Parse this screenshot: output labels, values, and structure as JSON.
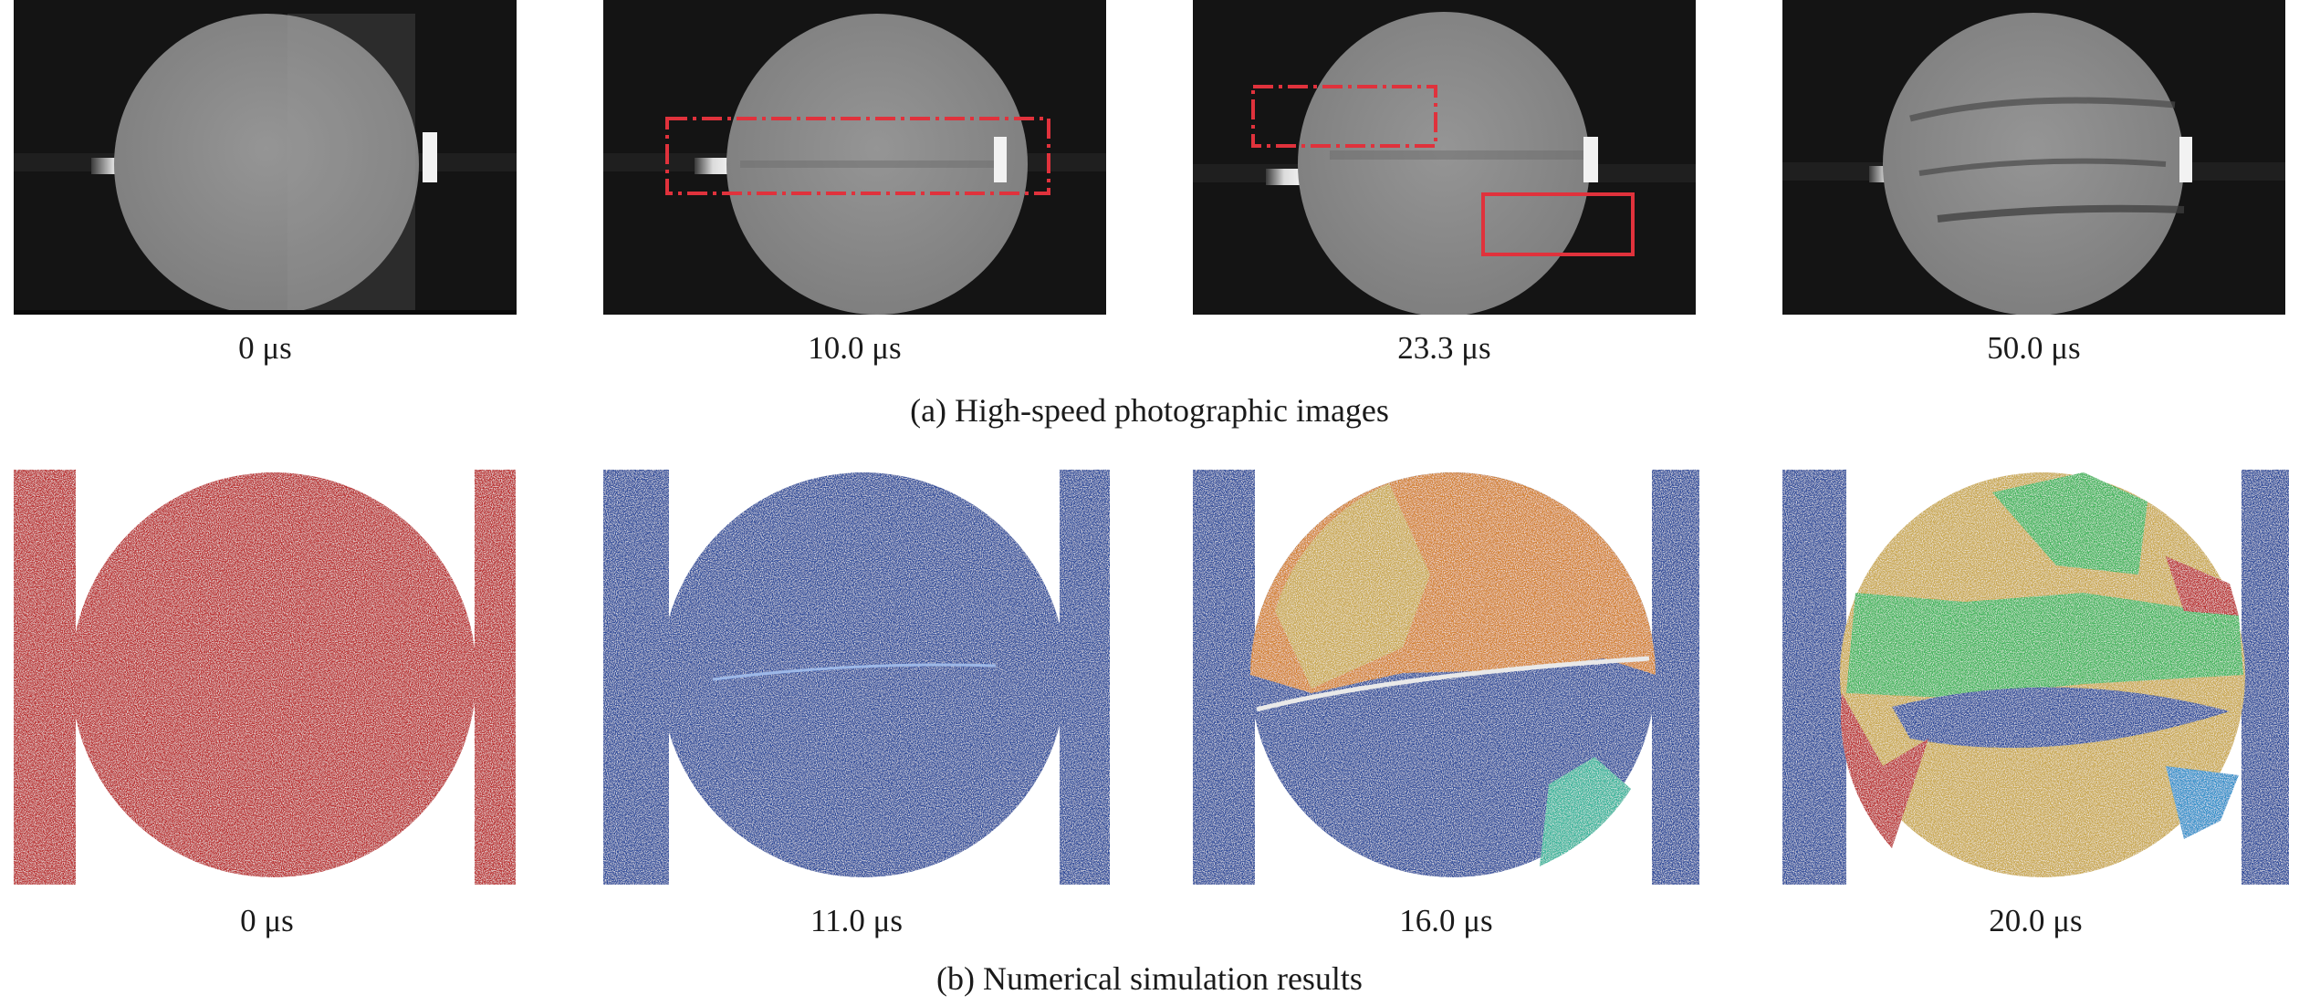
{
  "figure": {
    "row_a": {
      "caption": "(a) High-speed photographic images",
      "frames": [
        {
          "time": "0 μs"
        },
        {
          "time": "10.0 μs"
        },
        {
          "time": "23.3 μs"
        },
        {
          "time": "50.0 μs"
        }
      ]
    },
    "row_b": {
      "caption": "(b) Numerical simulation results",
      "frames": [
        {
          "time": "0 μs"
        },
        {
          "time": "11.0 μs"
        },
        {
          "time": "16.0 μs"
        },
        {
          "time": "20.0 μs"
        }
      ]
    },
    "colors": {
      "photo_background": "#141414",
      "specimen_gray": "#8c8c8c",
      "highlight_box": "#e0323c",
      "sim_red": "#b92d2d",
      "sim_blue": "#2f4c9a",
      "sim_orange": "#d2802e",
      "sim_gold": "#c9a850",
      "sim_green": "#3fb45a",
      "sim_teal": "#35b39a"
    }
  }
}
